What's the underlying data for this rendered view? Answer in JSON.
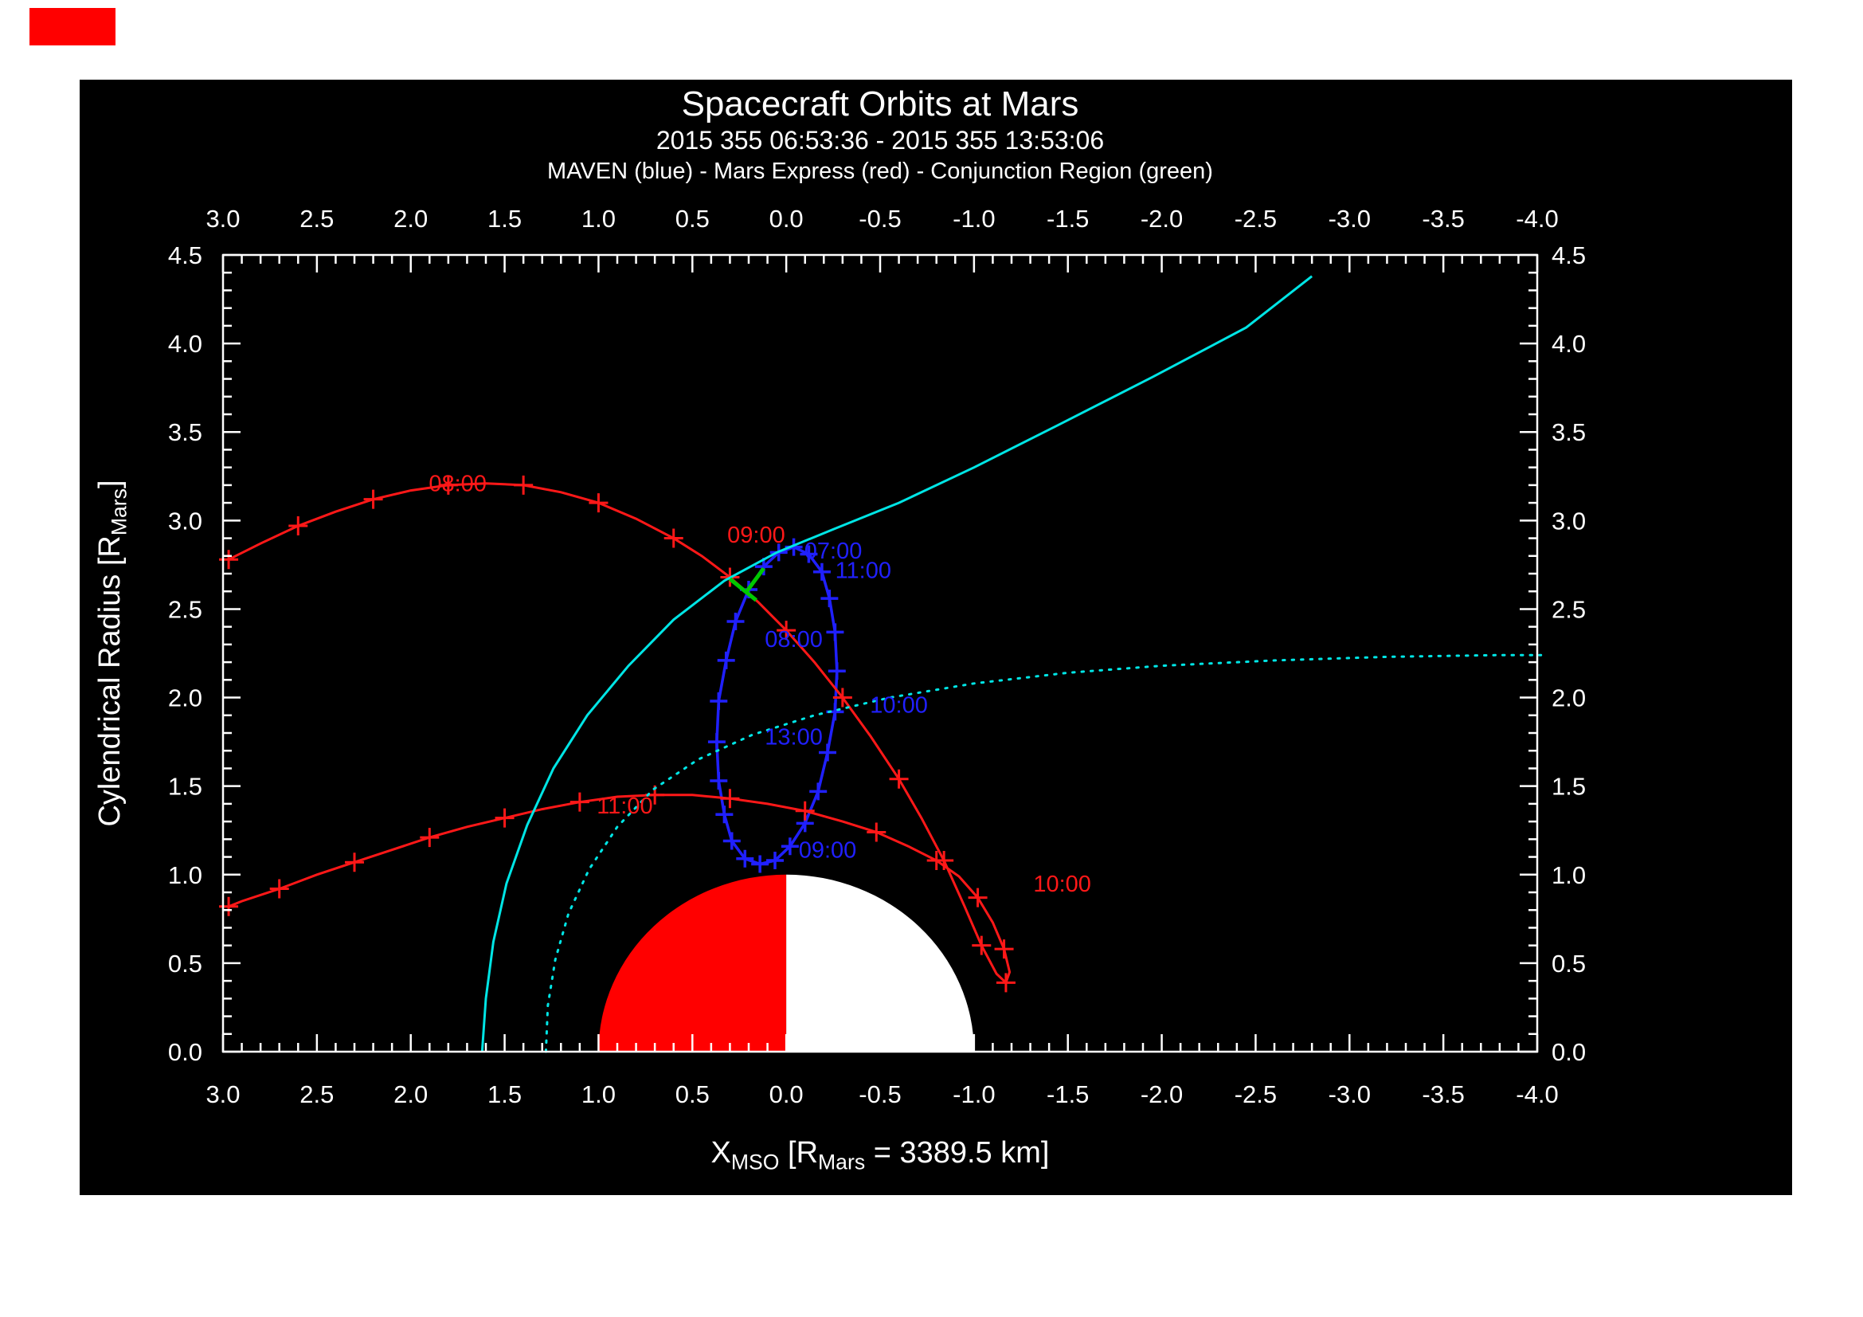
{
  "page": {
    "background": "#ffffff",
    "plot_background": "#000000",
    "corner_marker_color": "#ff0000"
  },
  "chart_data": {
    "type": "line",
    "title": "Spacecraft Orbits at Mars",
    "subtitle": "2015 355 06:53:36 - 2015 355 13:53:06",
    "legend_line": "MAVEN (blue) - Mars Express (red) - Conjunction Region (green)",
    "xlabel": "X_MSO [R_Mars = 3389.5 km]",
    "ylabel": "Cylendrical Radius [R_Mars]",
    "xlabel_parts": [
      {
        "t": "X"
      },
      {
        "t": "MSO",
        "sub": true
      },
      {
        "t": " [R"
      },
      {
        "t": "Mars",
        "sub": true
      },
      {
        "t": " = 3389.5 km]"
      }
    ],
    "ylabel_parts": [
      {
        "t": "Cylendrical Radius [R"
      },
      {
        "t": "Mars",
        "sub": true
      },
      {
        "t": "]"
      }
    ],
    "xlim": [
      3.0,
      -4.0
    ],
    "ylim": [
      0.0,
      4.5
    ],
    "x_tick_labels": [
      "3.0",
      "2.5",
      "2.0",
      "1.5",
      "1.0",
      "0.5",
      "0.0",
      "-0.5",
      "-1.0",
      "-1.5",
      "-2.0",
      "-2.5",
      "-3.0",
      "-3.5",
      "-4.0"
    ],
    "y_tick_labels": [
      "0.0",
      "0.5",
      "1.0",
      "1.5",
      "2.0",
      "2.5",
      "3.0",
      "3.5",
      "4.0",
      "4.5"
    ],
    "minor_tick_step": 0.1,
    "axis_color": "#ffffff",
    "grid": false,
    "mars": {
      "radius": 1.0,
      "dayside_color": "#ff0000",
      "nightside_color": "#ffffff",
      "dayside_x_range": [
        0,
        1
      ],
      "nightside_x_range": [
        -1,
        0
      ]
    },
    "series": [
      {
        "name": "maven-orbit",
        "label": "MAVEN",
        "color": "#2020ff",
        "style": "solid",
        "width": 3.5,
        "marker": "plus",
        "marker_every": 1,
        "marker_size": 11,
        "closed": true,
        "points": [
          [
            0.36,
            1.98
          ],
          [
            0.32,
            2.21
          ],
          [
            0.27,
            2.43
          ],
          [
            0.2,
            2.61
          ],
          [
            0.12,
            2.74
          ],
          [
            0.04,
            2.82
          ],
          [
            -0.04,
            2.85
          ],
          [
            -0.12,
            2.81
          ],
          [
            -0.19,
            2.71
          ],
          [
            -0.23,
            2.56
          ],
          [
            -0.26,
            2.37
          ],
          [
            -0.27,
            2.15
          ],
          [
            -0.26,
            1.92
          ],
          [
            -0.22,
            1.69
          ],
          [
            -0.17,
            1.47
          ],
          [
            -0.1,
            1.29
          ],
          [
            -0.02,
            1.16
          ],
          [
            0.06,
            1.08
          ],
          [
            0.14,
            1.06
          ],
          [
            0.22,
            1.09
          ],
          [
            0.29,
            1.19
          ],
          [
            0.33,
            1.34
          ],
          [
            0.36,
            1.53
          ],
          [
            0.37,
            1.75
          ]
        ]
      },
      {
        "name": "mars-express-orbit",
        "label": "Mars Express",
        "color": "#ff1818",
        "style": "solid",
        "width": 3,
        "marker": "plus",
        "marker_every": 2,
        "marker_size": 12,
        "closed": false,
        "points": [
          [
            2.97,
            2.78
          ],
          [
            2.8,
            2.87
          ],
          [
            2.6,
            2.97
          ],
          [
            2.4,
            3.05
          ],
          [
            2.2,
            3.12
          ],
          [
            2.0,
            3.17
          ],
          [
            1.8,
            3.2
          ],
          [
            1.6,
            3.21
          ],
          [
            1.4,
            3.2
          ],
          [
            1.2,
            3.16
          ],
          [
            1.0,
            3.1
          ],
          [
            0.8,
            3.01
          ],
          [
            0.6,
            2.9
          ],
          [
            0.45,
            2.8
          ],
          [
            0.3,
            2.68
          ],
          [
            0.15,
            2.54
          ],
          [
            0.0,
            2.38
          ],
          [
            -0.15,
            2.2
          ],
          [
            -0.3,
            2.0
          ],
          [
            -0.45,
            1.78
          ],
          [
            -0.6,
            1.54
          ],
          [
            -0.72,
            1.32
          ],
          [
            -0.84,
            1.08
          ],
          [
            -0.95,
            0.82
          ],
          [
            -1.04,
            0.6
          ],
          [
            -1.12,
            0.44
          ],
          [
            -1.17,
            0.39
          ],
          [
            -1.19,
            0.45
          ],
          [
            -1.16,
            0.58
          ],
          [
            -1.1,
            0.73
          ],
          [
            -1.02,
            0.87
          ],
          [
            -0.92,
            0.99
          ],
          [
            -0.8,
            1.08
          ],
          [
            -0.65,
            1.16
          ],
          [
            -0.48,
            1.24
          ],
          [
            -0.3,
            1.3
          ],
          [
            -0.1,
            1.36
          ],
          [
            0.1,
            1.4
          ],
          [
            0.3,
            1.43
          ],
          [
            0.5,
            1.45
          ],
          [
            0.7,
            1.45
          ],
          [
            0.9,
            1.44
          ],
          [
            1.1,
            1.41
          ],
          [
            1.3,
            1.37
          ],
          [
            1.5,
            1.32
          ],
          [
            1.7,
            1.27
          ],
          [
            1.9,
            1.21
          ],
          [
            2.1,
            1.14
          ],
          [
            2.3,
            1.07
          ],
          [
            2.5,
            1.0
          ],
          [
            2.7,
            0.92
          ],
          [
            2.9,
            0.85
          ],
          [
            2.97,
            0.82
          ]
        ]
      },
      {
        "name": "cyan-solid-boundary",
        "label": "",
        "color": "#00e5e5",
        "style": "solid",
        "width": 3,
        "closed": false,
        "points": [
          [
            1.62,
            0.0
          ],
          [
            1.6,
            0.3
          ],
          [
            1.56,
            0.62
          ],
          [
            1.49,
            0.95
          ],
          [
            1.38,
            1.28
          ],
          [
            1.24,
            1.6
          ],
          [
            1.06,
            1.9
          ],
          [
            0.84,
            2.18
          ],
          [
            0.6,
            2.44
          ],
          [
            0.33,
            2.66
          ],
          [
            0.05,
            2.82
          ],
          [
            -0.25,
            2.95
          ],
          [
            -0.6,
            3.1
          ],
          [
            -1.0,
            3.3
          ],
          [
            -1.45,
            3.54
          ],
          [
            -1.95,
            3.81
          ],
          [
            -2.45,
            4.09
          ],
          [
            -2.8,
            4.38
          ]
        ]
      },
      {
        "name": "cyan-dotted-boundary",
        "label": "",
        "color": "#00e5e5",
        "style": "dotted",
        "width": 3,
        "closed": false,
        "points": [
          [
            1.28,
            0.0
          ],
          [
            1.27,
            0.26
          ],
          [
            1.23,
            0.52
          ],
          [
            1.16,
            0.78
          ],
          [
            1.05,
            1.03
          ],
          [
            0.9,
            1.27
          ],
          [
            0.71,
            1.48
          ],
          [
            0.47,
            1.65
          ],
          [
            0.18,
            1.79
          ],
          [
            -0.15,
            1.9
          ],
          [
            -0.55,
            2.0
          ],
          [
            -1.0,
            2.08
          ],
          [
            -1.5,
            2.14
          ],
          [
            -2.0,
            2.18
          ],
          [
            -2.6,
            2.21
          ],
          [
            -3.2,
            2.23
          ],
          [
            -3.8,
            2.24
          ],
          [
            -4.02,
            2.24
          ]
        ]
      },
      {
        "name": "conjunction-region-a",
        "label": "Conjunction Region",
        "color": "#00c800",
        "style": "solid",
        "width": 5,
        "closed": false,
        "points": [
          [
            0.3,
            2.67
          ],
          [
            0.16,
            2.55
          ]
        ]
      },
      {
        "name": "conjunction-region-b",
        "label": "Conjunction Region",
        "color": "#00c800",
        "style": "solid",
        "width": 5,
        "closed": false,
        "points": [
          [
            0.21,
            2.6
          ],
          [
            0.12,
            2.73
          ]
        ]
      }
    ],
    "time_labels": [
      {
        "text": "08:00",
        "x": 1.75,
        "y": 3.21,
        "color": "#ff1818"
      },
      {
        "text": "09:00",
        "x": 0.16,
        "y": 2.92,
        "color": "#ff1818"
      },
      {
        "text": "10:00",
        "x": -1.47,
        "y": 0.95,
        "color": "#ff1818"
      },
      {
        "text": "11:00",
        "x": 0.86,
        "y": 1.39,
        "color": "#ff1818"
      },
      {
        "text": "07:00",
        "x": -0.25,
        "y": 2.83,
        "color": "#2020ff"
      },
      {
        "text": "11:00",
        "x": -0.41,
        "y": 2.72,
        "color": "#2020ff"
      },
      {
        "text": "08:00",
        "x": -0.04,
        "y": 2.33,
        "color": "#2020ff"
      },
      {
        "text": "10:00",
        "x": -0.6,
        "y": 1.96,
        "color": "#2020ff"
      },
      {
        "text": "13:00",
        "x": -0.04,
        "y": 1.78,
        "color": "#2020ff"
      },
      {
        "text": "09:00",
        "x": -0.22,
        "y": 1.14,
        "color": "#2020ff"
      }
    ]
  }
}
